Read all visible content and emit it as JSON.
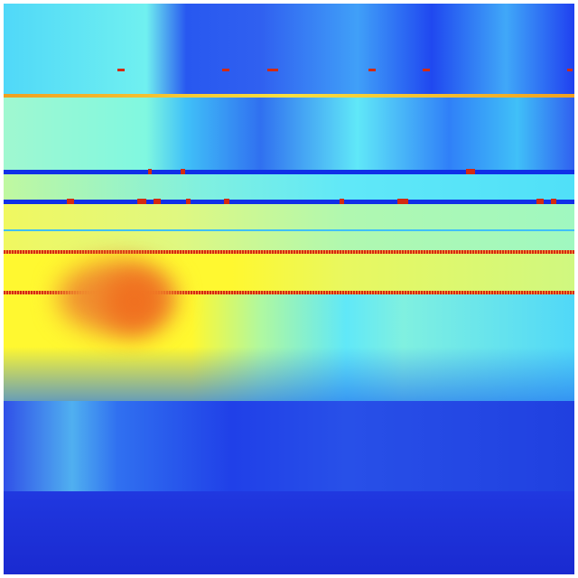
{
  "colormap": {
    "name": "jet",
    "dark_blue": "#1a2fd0",
    "blue": "#2040f0",
    "cyan": "#40f0f8",
    "yellow": "#fff830",
    "orange": "#f08020",
    "red": "#d42a10"
  }
}
